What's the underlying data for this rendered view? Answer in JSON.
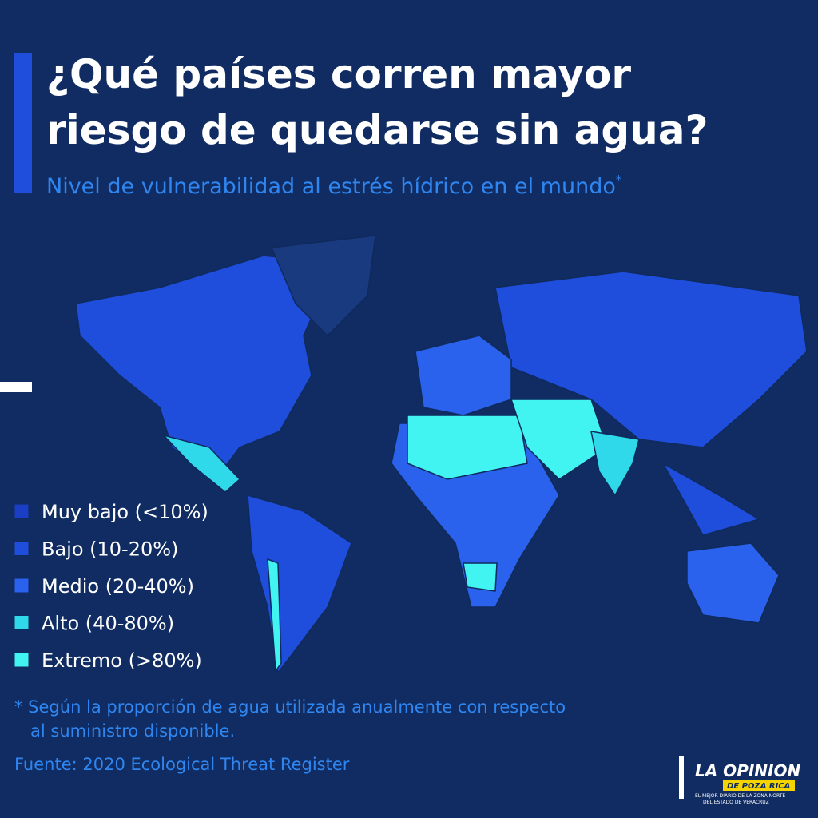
{
  "header": {
    "title_lines": [
      "¿Qué países corren mayor",
      "riesgo de quedarse sin agua?"
    ],
    "subtitle": "Nivel de vulnerabilidad al estrés hídrico en el mundo",
    "subtitle_mark": "*"
  },
  "legend": [
    {
      "label": "Muy bajo (<10%)",
      "color": "#1b3fc4"
    },
    {
      "label": "Bajo (10-20%)",
      "color": "#1f4ddc"
    },
    {
      "label": "Medio (20-40%)",
      "color": "#2a62ee"
    },
    {
      "label": "Alto (40-80%)",
      "color": "#2fd9ea"
    },
    {
      "label": "Extremo (>80%)",
      "color": "#41f4f2"
    }
  ],
  "footnote_lines": [
    "* Según la proporción de agua utilizada anualmente con respecto",
    "al suministro disponible."
  ],
  "source": "Fuente: 2020 Ecological Threat Register",
  "logo": {
    "name": "LA OPINION",
    "city": "DE POZA RICA",
    "tagline_lines": [
      "EL MEJOR DIARIO DE LA ZONA NORTE",
      "DEL ESTADO DE VERACRUZ"
    ]
  }
}
